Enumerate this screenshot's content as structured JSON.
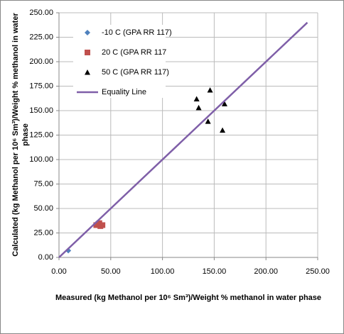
{
  "chart_data": {
    "type": "scatter",
    "xlabel": "Measured (kg Methanol per 10⁶ Sm³)/Weight % methanol in water phase",
    "ylabel": [
      "Calculated (kg Methanol per 10⁶ Sm³)/Weight % methanol in water",
      "phase"
    ],
    "xlim": [
      0,
      250
    ],
    "ylim": [
      0,
      250
    ],
    "xticks": [
      {
        "value": 0,
        "label": "0.00"
      },
      {
        "value": 50,
        "label": "50.00"
      },
      {
        "value": 100,
        "label": "100.00"
      },
      {
        "value": 150,
        "label": "150.00"
      },
      {
        "value": 200,
        "label": "200.00"
      },
      {
        "value": 250,
        "label": "250.00"
      }
    ],
    "yticks": [
      {
        "value": 0,
        "label": "0.00"
      },
      {
        "value": 25,
        "label": "25.00"
      },
      {
        "value": 50,
        "label": "50.00"
      },
      {
        "value": 75,
        "label": "75.00"
      },
      {
        "value": 100,
        "label": "100.00"
      },
      {
        "value": 125,
        "label": "125.00"
      },
      {
        "value": 150,
        "label": "150.00"
      },
      {
        "value": 175,
        "label": "175.00"
      },
      {
        "value": 200,
        "label": "200.00"
      },
      {
        "value": 225,
        "label": "225.00"
      },
      {
        "value": 250,
        "label": "250.00"
      }
    ],
    "grid": true,
    "series": [
      {
        "name": "-10 C (GPA RR 117)",
        "color": "#4f81bd",
        "marker": "diamond",
        "x": [
          9
        ],
        "values": [
          7
        ]
      },
      {
        "name": "20 C (GPA RR 117",
        "color": "#c0504d",
        "marker": "square",
        "x": [
          36,
          38,
          40,
          42,
          39
        ],
        "values": [
          33,
          34,
          32,
          33,
          35
        ]
      },
      {
        "name": "50 C (GPA RR 117)",
        "color": "#000000",
        "marker": "triangle",
        "x": [
          133,
          135,
          144,
          146,
          158,
          160
        ],
        "values": [
          162,
          153,
          139,
          171,
          130,
          157
        ]
      },
      {
        "name": "Equality Line",
        "color": "#7f5fa8",
        "marker": "line",
        "x": [
          0,
          240
        ],
        "values": [
          0,
          240
        ]
      }
    ]
  }
}
